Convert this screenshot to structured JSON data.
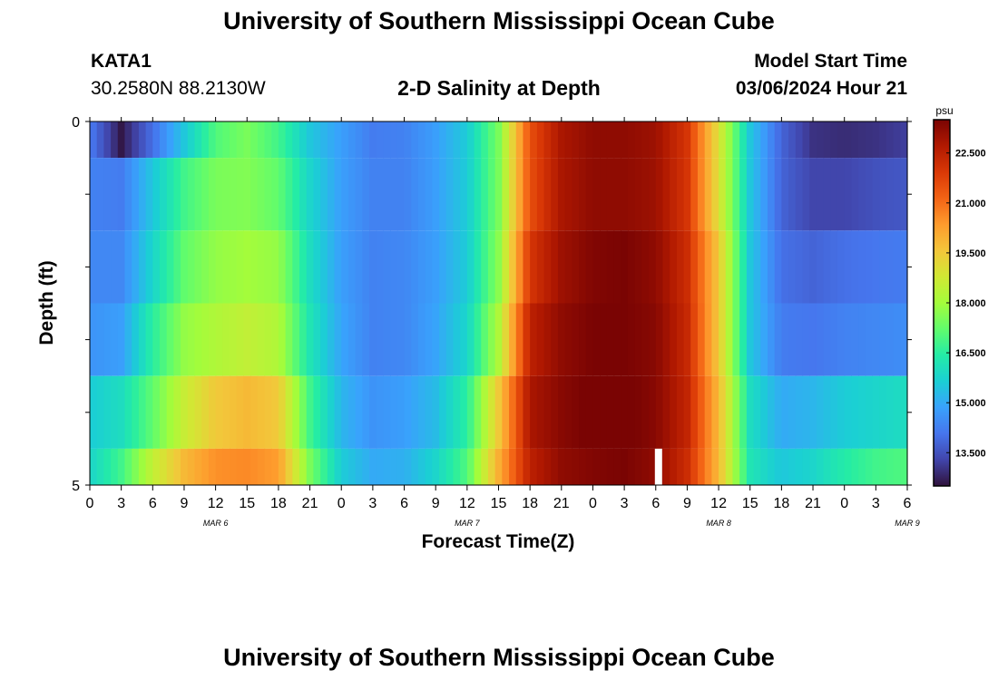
{
  "header": {
    "title": "University of Southern Mississippi Ocean Cube",
    "station_id": "KATA1",
    "station_coords": "30.2580N  88.2130W",
    "chart_subtitle": "2-D Salinity at Depth",
    "model_label": "Model Start Time",
    "model_time": "03/06/2024 Hour 21"
  },
  "footer": {
    "title": "University of Southern Mississippi Ocean Cube"
  },
  "chart_data": {
    "type": "heatmap",
    "title": "2-D Salinity at Depth",
    "xlabel": "Forecast Time(Z)",
    "ylabel": "Depth (ft)",
    "x_hours_start": "03/06/2024 Hour 00",
    "x_tick_labels": [
      "0",
      "3",
      "6",
      "9",
      "12",
      "15",
      "18",
      "21",
      "0",
      "3",
      "6",
      "9",
      "12",
      "15",
      "18",
      "21",
      "0",
      "3",
      "6",
      "9",
      "12",
      "15",
      "18",
      "21",
      "0",
      "3",
      "6"
    ],
    "date_labels": [
      {
        "label": "MAR 6",
        "hour": 12
      },
      {
        "label": "MAR 7",
        "hour": 36
      },
      {
        "label": "MAR 8",
        "hour": 60
      },
      {
        "label": "MAR 9",
        "hour": 78
      }
    ],
    "y_ticks": [
      "0",
      "5"
    ],
    "ylim": [
      0,
      5
    ],
    "depth_layers": 5,
    "time_nodes_hours": [
      0,
      3,
      6,
      9,
      12,
      15,
      18,
      21,
      24,
      27,
      30,
      33,
      36,
      39,
      42,
      45,
      48,
      51,
      54,
      57,
      60,
      63,
      66,
      69,
      72,
      75,
      78
    ],
    "salinity_rows": [
      [
        14.2,
        12.6,
        14.0,
        15.5,
        17.0,
        17.5,
        16.8,
        15.5,
        14.8,
        14.2,
        14.3,
        14.8,
        15.6,
        17.5,
        21.5,
        22.8,
        23.2,
        23.2,
        23.0,
        22.0,
        19.0,
        15.5,
        13.8,
        13.0,
        12.9,
        13.0,
        13.2
      ],
      [
        14.3,
        14.2,
        15.5,
        16.8,
        17.5,
        17.6,
        17.2,
        15.8,
        14.8,
        14.3,
        14.3,
        14.8,
        15.6,
        17.5,
        21.5,
        22.8,
        23.2,
        23.2,
        23.0,
        22.0,
        19.0,
        15.5,
        13.8,
        13.3,
        13.3,
        13.5,
        13.6
      ],
      [
        14.4,
        14.4,
        15.8,
        17.2,
        17.8,
        18.0,
        17.8,
        16.0,
        14.8,
        14.3,
        14.4,
        14.8,
        15.6,
        17.7,
        22.0,
        23.0,
        23.4,
        23.5,
        23.2,
        22.2,
        19.5,
        15.5,
        14.0,
        13.8,
        14.0,
        14.1,
        14.2
      ],
      [
        14.6,
        14.8,
        16.5,
        17.8,
        18.2,
        18.5,
        18.2,
        16.2,
        14.9,
        14.3,
        14.4,
        14.9,
        15.8,
        18.2,
        22.5,
        23.2,
        23.5,
        23.5,
        23.3,
        22.3,
        19.5,
        15.5,
        14.2,
        14.1,
        14.3,
        14.4,
        14.5
      ],
      [
        15.6,
        16.0,
        17.2,
        18.6,
        19.5,
        19.8,
        19.5,
        16.8,
        15.2,
        14.6,
        14.8,
        15.3,
        16.5,
        19.5,
        22.8,
        23.3,
        23.6,
        23.6,
        23.3,
        22.4,
        19.8,
        16.0,
        15.0,
        15.2,
        15.6,
        15.8,
        16.0
      ],
      [
        15.8,
        16.8,
        18.5,
        19.8,
        20.5,
        20.6,
        20.3,
        17.5,
        15.6,
        15.0,
        15.1,
        15.8,
        17.0,
        20.0,
        22.5,
        23.2,
        23.4,
        23.5,
        23.2,
        22.2,
        19.8,
        16.2,
        15.5,
        15.8,
        16.4,
        16.8,
        17.0
      ]
    ],
    "colorbar": {
      "unit": "psu",
      "ticks": [
        "13.500",
        "15.000",
        "16.500",
        "18.000",
        "19.500",
        "21.000",
        "22.500"
      ],
      "min": 12.5,
      "max": 23.5,
      "colors": [
        "#30123b",
        "#4145ab",
        "#4675ed",
        "#39a2fc",
        "#1bcfd4",
        "#24eca6",
        "#61fc6c",
        "#a4fc3b",
        "#d1e834",
        "#f3c63a",
        "#fe9b2d",
        "#f36315",
        "#d93806",
        "#b11901",
        "#7a0403"
      ]
    },
    "gap_marker": {
      "hour": 54,
      "color": "#ffffff"
    },
    "grid": false
  }
}
